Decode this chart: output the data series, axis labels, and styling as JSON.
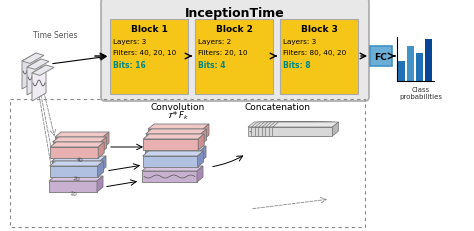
{
  "title": "InceptionTime",
  "blocks": [
    {
      "name": "Block 1",
      "layers": "Layers: 3",
      "filters": "Filters: 40, 20, 10",
      "bits": "Bits: 16"
    },
    {
      "name": "Block 2",
      "layers": "Layers: 2",
      "filters": "Filters: 20, 10",
      "bits": "Bits: 4"
    },
    {
      "name": "Block 3",
      "layers": "Layers: 3",
      "filters": "Filters: 80, 40, 20",
      "bits": "Bits: 8"
    }
  ],
  "outer_facecolor": "#e8e8e8",
  "outer_edgecolor": "#aaaaaa",
  "block_bg_color": "#f5c518",
  "block_border_color": "#aaaaaa",
  "bits_color": "#008888",
  "fc_bg_color": "#6baed6",
  "fc_border_color": "#4292c6",
  "bar_colors": [
    "#2171b5",
    "#4292c6",
    "#2171b5",
    "#084594"
  ],
  "time_series_label": "Time Series",
  "convolution_label": "Convolution",
  "math_label": "$\\mathcal{T} * F_k$",
  "concatenation_label": "Concatenation",
  "class_prob_label": "Class\nprobabilities",
  "fc_label": "FC",
  "dashed_box_color": "#888888",
  "pink_face": "#e8b0b0",
  "pink_top": "#f0c8c8",
  "pink_side": "#d09090",
  "blue_face": "#b0c0e0",
  "blue_top": "#c8d4f0",
  "blue_side": "#8090c0",
  "purple_face": "#c8b0d0",
  "purple_top": "#d8c4e0",
  "purple_side": "#a888b8",
  "gray_face": "#d8d8d8",
  "gray_top": "#e8e8e8",
  "gray_side": "#b8b8b8",
  "white_face": "#f0f0f0",
  "white_top": "#ffffff",
  "white_side": "#d0d0d0",
  "bg_color": "#ffffff"
}
